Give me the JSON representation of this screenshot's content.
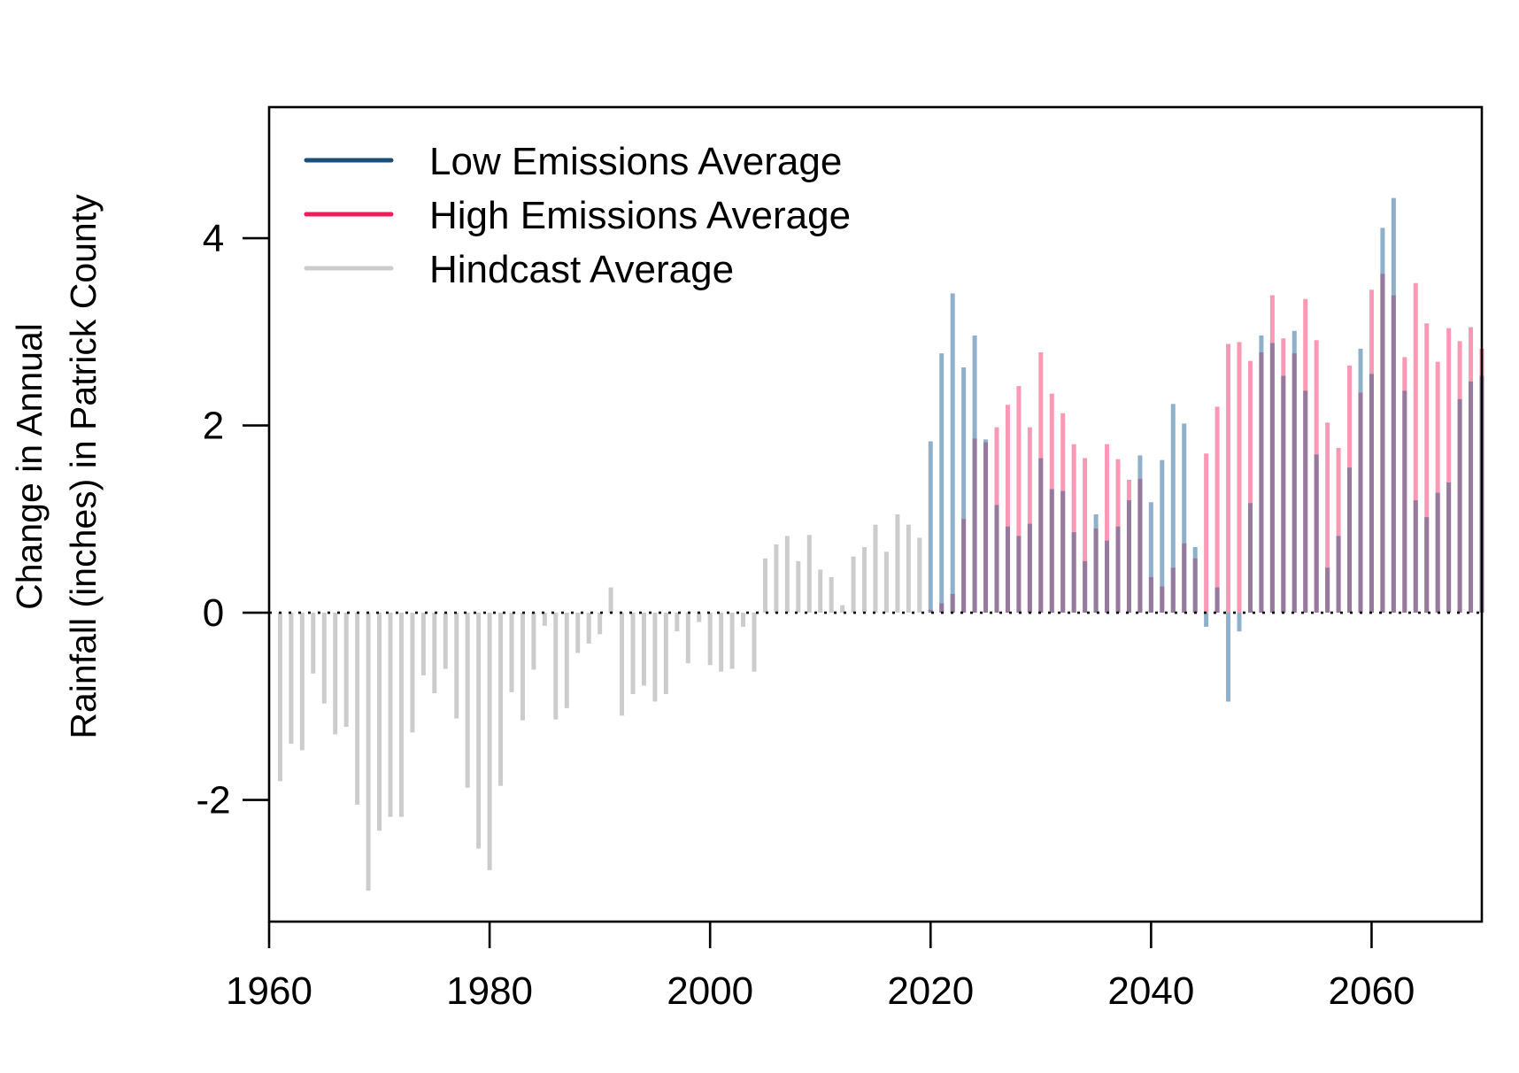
{
  "chart_data": {
    "type": "bar",
    "ylabel_lines": [
      "Change in Annual",
      "Rainfall (inches) in Patrick County"
    ],
    "xlim": [
      1960,
      2070
    ],
    "ylim": [
      -3.3,
      5.4
    ],
    "x_ticks": [
      1960,
      1980,
      2000,
      2020,
      2040,
      2060
    ],
    "y_ticks": [
      -2,
      0,
      2,
      4
    ],
    "reference_line": 0,
    "legend": {
      "placement": "top-left"
    },
    "colors": {
      "low": "#1b4f7a",
      "high": "#ee1e5d",
      "hindcast": "#cccccc",
      "low_bar": "#8fb0cb",
      "high_bar": "#fb98b5",
      "overlap_bar": "#957a9e"
    },
    "series": [
      {
        "name": "Hindcast Average",
        "key": "hindcast",
        "x": [
          1961,
          1962,
          1963,
          1964,
          1965,
          1966,
          1967,
          1968,
          1969,
          1970,
          1971,
          1972,
          1973,
          1974,
          1975,
          1976,
          1977,
          1978,
          1979,
          1980,
          1981,
          1982,
          1983,
          1984,
          1985,
          1986,
          1987,
          1988,
          1989,
          1990,
          1991,
          1992,
          1993,
          1994,
          1995,
          1996,
          1997,
          1998,
          1999,
          2000,
          2001,
          2002,
          2003,
          2004,
          2005,
          2006,
          2007,
          2008,
          2009,
          2010,
          2011,
          2012,
          2013,
          2014,
          2015,
          2016,
          2017,
          2018,
          2019
        ],
        "values": [
          -1.8,
          -1.4,
          -1.47,
          -0.65,
          -0.97,
          -1.3,
          -1.22,
          -2.05,
          -2.97,
          -2.33,
          -2.18,
          -2.18,
          -1.28,
          -0.67,
          -0.86,
          -0.6,
          -1.13,
          -1.87,
          -2.52,
          -2.75,
          -1.85,
          -0.85,
          -1.15,
          -0.61,
          -0.14,
          -1.14,
          -1.02,
          -0.43,
          -0.33,
          -0.23,
          0.27,
          -1.1,
          -0.87,
          -0.78,
          -0.95,
          -0.87,
          -0.2,
          -0.54,
          -0.1,
          -0.56,
          -0.63,
          -0.6,
          -0.15,
          -0.63,
          0.58,
          0.73,
          0.82,
          0.55,
          0.83,
          0.46,
          0.38,
          0.08,
          0.6,
          0.7,
          0.94,
          0.65,
          1.05,
          0.94,
          0.8
        ]
      },
      {
        "name": "Low Emissions Average",
        "key": "low",
        "x": [
          2020,
          2021,
          2022,
          2023,
          2024,
          2025,
          2026,
          2027,
          2028,
          2029,
          2030,
          2031,
          2032,
          2033,
          2034,
          2035,
          2036,
          2037,
          2038,
          2039,
          2040,
          2041,
          2042,
          2043,
          2044,
          2045,
          2046,
          2047,
          2048,
          2049,
          2050,
          2051,
          2052,
          2053,
          2054,
          2055,
          2056,
          2057,
          2058,
          2059,
          2060,
          2061,
          2062,
          2063,
          2064,
          2065,
          2066,
          2067,
          2068,
          2069,
          2070
        ],
        "values": [
          1.83,
          2.77,
          3.41,
          2.62,
          2.96,
          1.85,
          1.15,
          0.92,
          0.82,
          0.95,
          1.65,
          1.32,
          1.3,
          0.86,
          0.55,
          1.05,
          0.77,
          0.92,
          1.2,
          1.68,
          1.18,
          1.63,
          2.23,
          2.02,
          0.7,
          -0.15,
          0.27,
          -0.95,
          -0.2,
          1.17,
          2.96,
          2.88,
          2.53,
          3.01,
          2.37,
          1.69,
          0.48,
          0.82,
          1.55,
          2.82,
          2.55,
          4.11,
          4.43,
          2.37,
          1.2,
          1.02,
          1.28,
          1.39,
          2.28,
          2.47,
          2.53
        ]
      },
      {
        "name": "High Emissions Average",
        "key": "high",
        "x": [
          2020,
          2021,
          2022,
          2023,
          2024,
          2025,
          2026,
          2027,
          2028,
          2029,
          2030,
          2031,
          2032,
          2033,
          2034,
          2035,
          2036,
          2037,
          2038,
          2039,
          2040,
          2041,
          2042,
          2043,
          2044,
          2045,
          2046,
          2047,
          2048,
          2049,
          2050,
          2051,
          2052,
          2053,
          2054,
          2055,
          2056,
          2057,
          2058,
          2059,
          2060,
          2061,
          2062,
          2063,
          2064,
          2065,
          2066,
          2067,
          2068,
          2069,
          2070
        ],
        "values": [
          0.03,
          0.1,
          0.2,
          1.0,
          1.86,
          1.82,
          1.98,
          2.22,
          2.42,
          1.98,
          2.78,
          2.34,
          2.13,
          1.8,
          1.65,
          0.9,
          1.8,
          1.64,
          1.42,
          1.43,
          0.38,
          0.28,
          0.48,
          0.74,
          0.58,
          1.7,
          2.2,
          2.87,
          2.89,
          2.69,
          2.78,
          3.39,
          2.93,
          2.77,
          3.35,
          2.91,
          2.03,
          1.76,
          2.64,
          2.35,
          3.45,
          3.62,
          3.39,
          2.73,
          3.52,
          3.09,
          2.68,
          3.04,
          2.9,
          3.05,
          2.82
        ]
      }
    ]
  }
}
